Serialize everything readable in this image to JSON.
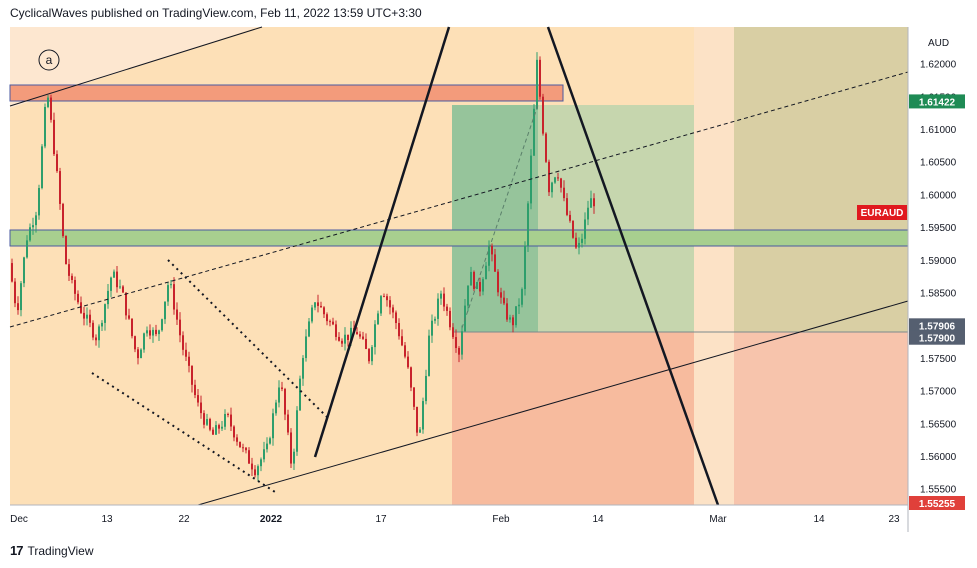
{
  "header": {
    "attribution": "CyclicalWaves published on TradingView.com, Feb 11, 2022 13:59 UTC+3:30"
  },
  "footer": {
    "brand": "TradingView",
    "logo": "17"
  },
  "chart_data": {
    "type": "candlestick",
    "symbol": "EURAUD",
    "currency": "AUD",
    "current_price": "1.61422",
    "wave_label": "a",
    "price_tags": [
      {
        "label": "1.61422",
        "price": 1.61422,
        "color": "#1e8b55"
      },
      {
        "label": "1.57906",
        "price": 1.57906,
        "color": "#555f70"
      },
      {
        "label": "1.57900",
        "price": 1.579,
        "color": "#555f70"
      },
      {
        "label": "1.55255",
        "price": 1.55255,
        "color": "#e0403a"
      }
    ],
    "y_ticks": [
      "1.62000",
      "1.61500",
      "1.61000",
      "1.60500",
      "1.60000",
      "1.59500",
      "1.59000",
      "1.58500",
      "1.58000",
      "1.57500",
      "1.57000",
      "1.56500",
      "1.56000",
      "1.55500"
    ],
    "y_range": [
      1.5525,
      1.6256
    ],
    "x_ticks": [
      {
        "label": "Dec",
        "bold": false
      },
      {
        "label": "13",
        "bold": false
      },
      {
        "label": "22",
        "bold": false
      },
      {
        "label": "2022",
        "bold": true
      },
      {
        "label": "17",
        "bold": false
      },
      {
        "label": "Feb",
        "bold": false
      },
      {
        "label": "14",
        "bold": false
      },
      {
        "label": "Mar",
        "bold": false
      },
      {
        "label": "14",
        "bold": false
      },
      {
        "label": "23",
        "bold": false
      }
    ],
    "colors": {
      "background": "#fde0b7",
      "up": "#2e9e6c",
      "down": "#c8232c",
      "resistance_zone": "#f39b7b",
      "support_zone": "#a8cf8f",
      "target_zone": "#9ac8a0",
      "stop_zone": "#f4a99c"
    }
  }
}
